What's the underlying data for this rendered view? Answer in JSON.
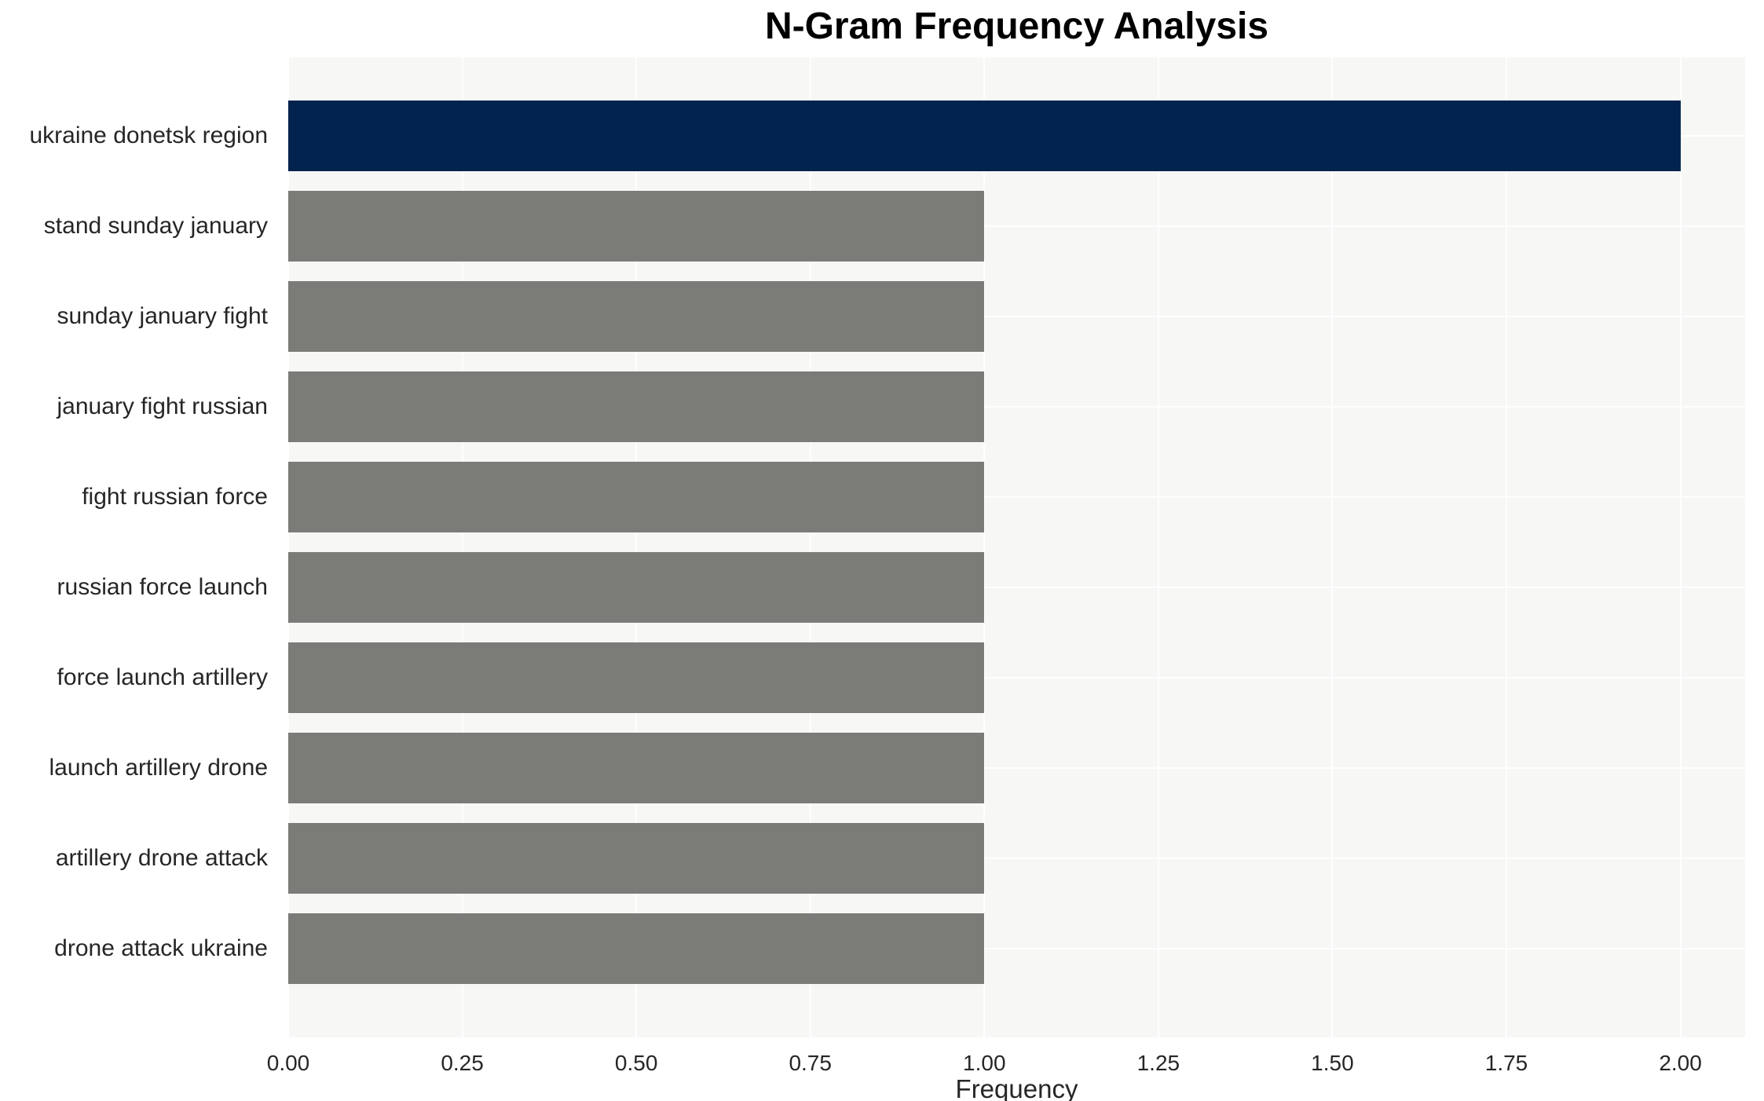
{
  "chart": {
    "title": "N-Gram Frequency Analysis",
    "xlabel": "Frequency"
  },
  "chart_data": {
    "type": "bar",
    "orientation": "horizontal",
    "title": "N-Gram Frequency Analysis",
    "xlabel": "Frequency",
    "ylabel": "",
    "categories": [
      "ukraine donetsk region",
      "stand sunday january",
      "sunday january fight",
      "january fight russian",
      "fight russian force",
      "russian force launch",
      "force launch artillery",
      "launch artillery drone",
      "artillery drone attack",
      "drone attack ukraine"
    ],
    "values": [
      2,
      1,
      1,
      1,
      1,
      1,
      1,
      1,
      1,
      1
    ],
    "highlight_index": 0,
    "xticks": [
      "0.00",
      "0.25",
      "0.50",
      "0.75",
      "1.00",
      "1.25",
      "1.50",
      "1.75",
      "2.00"
    ],
    "xtick_values": [
      0,
      0.25,
      0.5,
      0.75,
      1.0,
      1.25,
      1.5,
      1.75,
      2.0
    ],
    "xlim": [
      0,
      2.093
    ],
    "grid": true,
    "legend": false,
    "colors": {
      "highlight_bar": "#01234d",
      "default_bar": "#7b7b78",
      "plot_background": "#f7f7f6",
      "gridline": "#ffffff",
      "text": "#262626"
    }
  }
}
